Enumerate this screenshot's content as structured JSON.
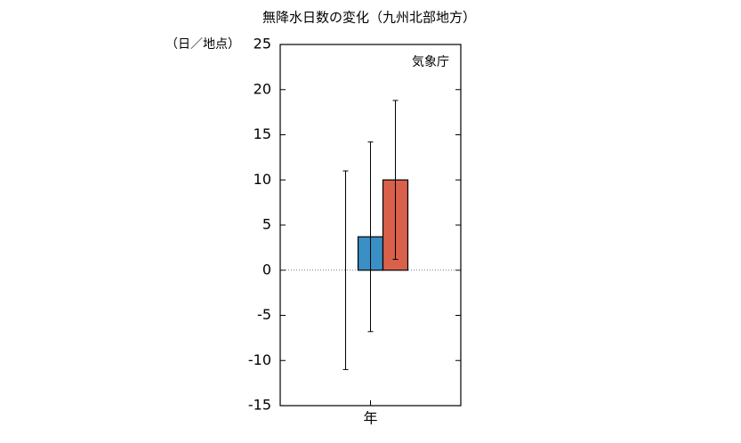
{
  "chart_data": {
    "type": "bar",
    "title": "無降水日数の変化（九州北部地方）",
    "ylabel": "（日／地点）",
    "annotation": "気象庁",
    "categories": [
      "年"
    ],
    "series": [
      {
        "values": [
          0
        ],
        "errors": [
          11
        ]
      },
      {
        "color": "#3a8fc4",
        "values": [
          3.7
        ],
        "errors": [
          10.5
        ]
      },
      {
        "color": "#d9604a",
        "values": [
          10
        ],
        "errors": [
          8.8
        ]
      }
    ],
    "ylim": [
      -15,
      25
    ],
    "yticks": [
      -15,
      -10,
      -5,
      0,
      5,
      10,
      15,
      20,
      25
    ]
  }
}
